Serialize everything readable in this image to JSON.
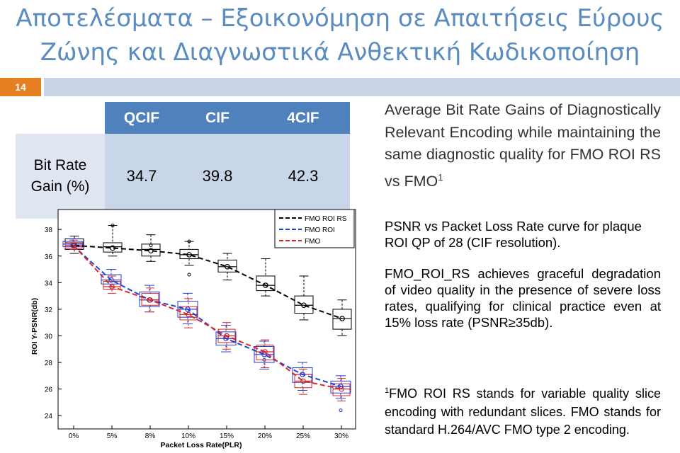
{
  "title": {
    "line1": "Αποτελέσματα – Εξοικονόμηση σε Απαιτήσεις Εύρους",
    "line2": "Ζώνης και Διαγνωστικά Ανθεκτική Κωδικοποίηση"
  },
  "slide_number": "14",
  "gain_table": {
    "headers": [
      "QCIF",
      "CIF",
      "4CIF"
    ],
    "row_label_line1": "Bit Rate",
    "row_label_line2": "Gain (%)",
    "values": [
      "34.7",
      "39.8",
      "42.3"
    ]
  },
  "text": {
    "gains_para": "Average Bit Rate Gains of Diagnostically Relevant Encoding while maintaining the same diagnostic quality for FMO ROI RS vs FMO",
    "gains_sup": "1",
    "caption": "PSNR vs Packet Loss Rate curve for plaque ROI QP of 28 (CIF resolution).",
    "achieves": "FMO_ROI_RS achieves graceful degradation of video quality in the presence of severe loss rates, qualifying for clinical practice even at 15% loss rate (PSNR≥35db).",
    "footnote_sup": "1",
    "footnote": "FMO ROI RS stands for variable quality slice encoding with redundant slices. FMO stands for standard H.264/AVC FMO type 2 encoding."
  },
  "colors": {
    "title": "#5b8cc0",
    "accent": "#e67e22",
    "table_header": "#4f81bd",
    "series_rs": "#000000",
    "series_roi": "#1f3fd8",
    "series_fmo": "#d62828"
  },
  "chart_data": {
    "type": "box",
    "xlabel": "Packet Loss Rate(PLR)",
    "ylabel": "ROI Y-PSNR(db)",
    "categories": [
      "0%",
      "5%",
      "8%",
      "10%",
      "15%",
      "20%",
      "25%",
      "30%"
    ],
    "yticks": [
      "24",
      "26",
      "28",
      "30",
      "32",
      "34",
      "36",
      "38"
    ],
    "ylim": [
      23,
      39.5
    ],
    "legend_position": "top-right",
    "series": [
      {
        "name": "FMO ROI RS",
        "color": "#000000",
        "dash": "dashed",
        "values": [
          36.8,
          36.6,
          36.4,
          36.1,
          35.2,
          33.8,
          32.3,
          31.3
        ]
      },
      {
        "name": "FMO ROI",
        "color": "#1f3fd8",
        "dash": "dashed",
        "values": [
          36.8,
          34.2,
          32.7,
          32.0,
          29.8,
          28.6,
          27.1,
          26.2
        ]
      },
      {
        "name": "FMO",
        "color": "#d62828",
        "dash": "dashed",
        "values": [
          36.8,
          33.7,
          32.7,
          31.6,
          30.0,
          28.8,
          26.6,
          26.0
        ]
      }
    ],
    "boxes": {
      "rs": [
        [
          36.2,
          36.5,
          37.0,
          37.3,
          37.5
        ],
        [
          36.0,
          36.3,
          36.7,
          37.0,
          38.3
        ],
        [
          35.6,
          36.0,
          36.5,
          36.9,
          37.6
        ],
        [
          35.3,
          35.8,
          36.1,
          36.5,
          37.1
        ],
        [
          34.2,
          34.8,
          35.2,
          35.7,
          36.2
        ],
        [
          33.0,
          33.4,
          33.8,
          34.5,
          35.8
        ],
        [
          31.2,
          31.7,
          32.3,
          33.0,
          34.5
        ],
        [
          30.0,
          30.5,
          31.3,
          32.0,
          32.7
        ]
      ],
      "roi": [
        [
          36.6,
          36.7,
          36.9,
          37.1,
          37.3
        ],
        [
          33.5,
          33.9,
          34.2,
          34.6,
          35.0
        ],
        [
          31.8,
          32.2,
          32.7,
          33.3,
          33.8
        ],
        [
          30.9,
          31.4,
          32.0,
          32.6,
          33.2
        ],
        [
          28.8,
          29.3,
          29.8,
          30.3,
          30.8
        ],
        [
          27.5,
          28.0,
          28.6,
          29.2,
          29.6
        ],
        [
          25.9,
          26.5,
          27.1,
          27.6,
          28.0
        ],
        [
          25.3,
          25.7,
          26.2,
          26.6,
          27.0
        ]
      ],
      "fmo": [
        [
          36.5,
          36.6,
          36.8,
          37.0,
          37.2
        ],
        [
          33.2,
          33.5,
          33.7,
          34.1,
          34.5
        ],
        [
          31.8,
          32.3,
          32.7,
          33.2,
          33.6
        ],
        [
          30.6,
          31.2,
          31.6,
          32.2,
          32.8
        ],
        [
          29.0,
          29.5,
          30.0,
          30.5,
          31.0
        ],
        [
          27.6,
          28.2,
          28.8,
          29.3,
          29.7
        ],
        [
          25.6,
          26.1,
          26.6,
          27.1,
          27.5
        ],
        [
          25.1,
          25.5,
          26.0,
          26.4,
          26.8
        ]
      ]
    },
    "outliers": {
      "rs": [
        [],
        [
          38.3
        ],
        [
          36.8
        ],
        [
          37.1,
          34.6
        ],
        [],
        [],
        [],
        []
      ],
      "roi": [
        [],
        [],
        [],
        [],
        [],
        [
          28.2
        ],
        [],
        [
          24.4
        ]
      ],
      "fmo": [
        [],
        [],
        [],
        [],
        [],
        [],
        [],
        []
      ]
    }
  }
}
